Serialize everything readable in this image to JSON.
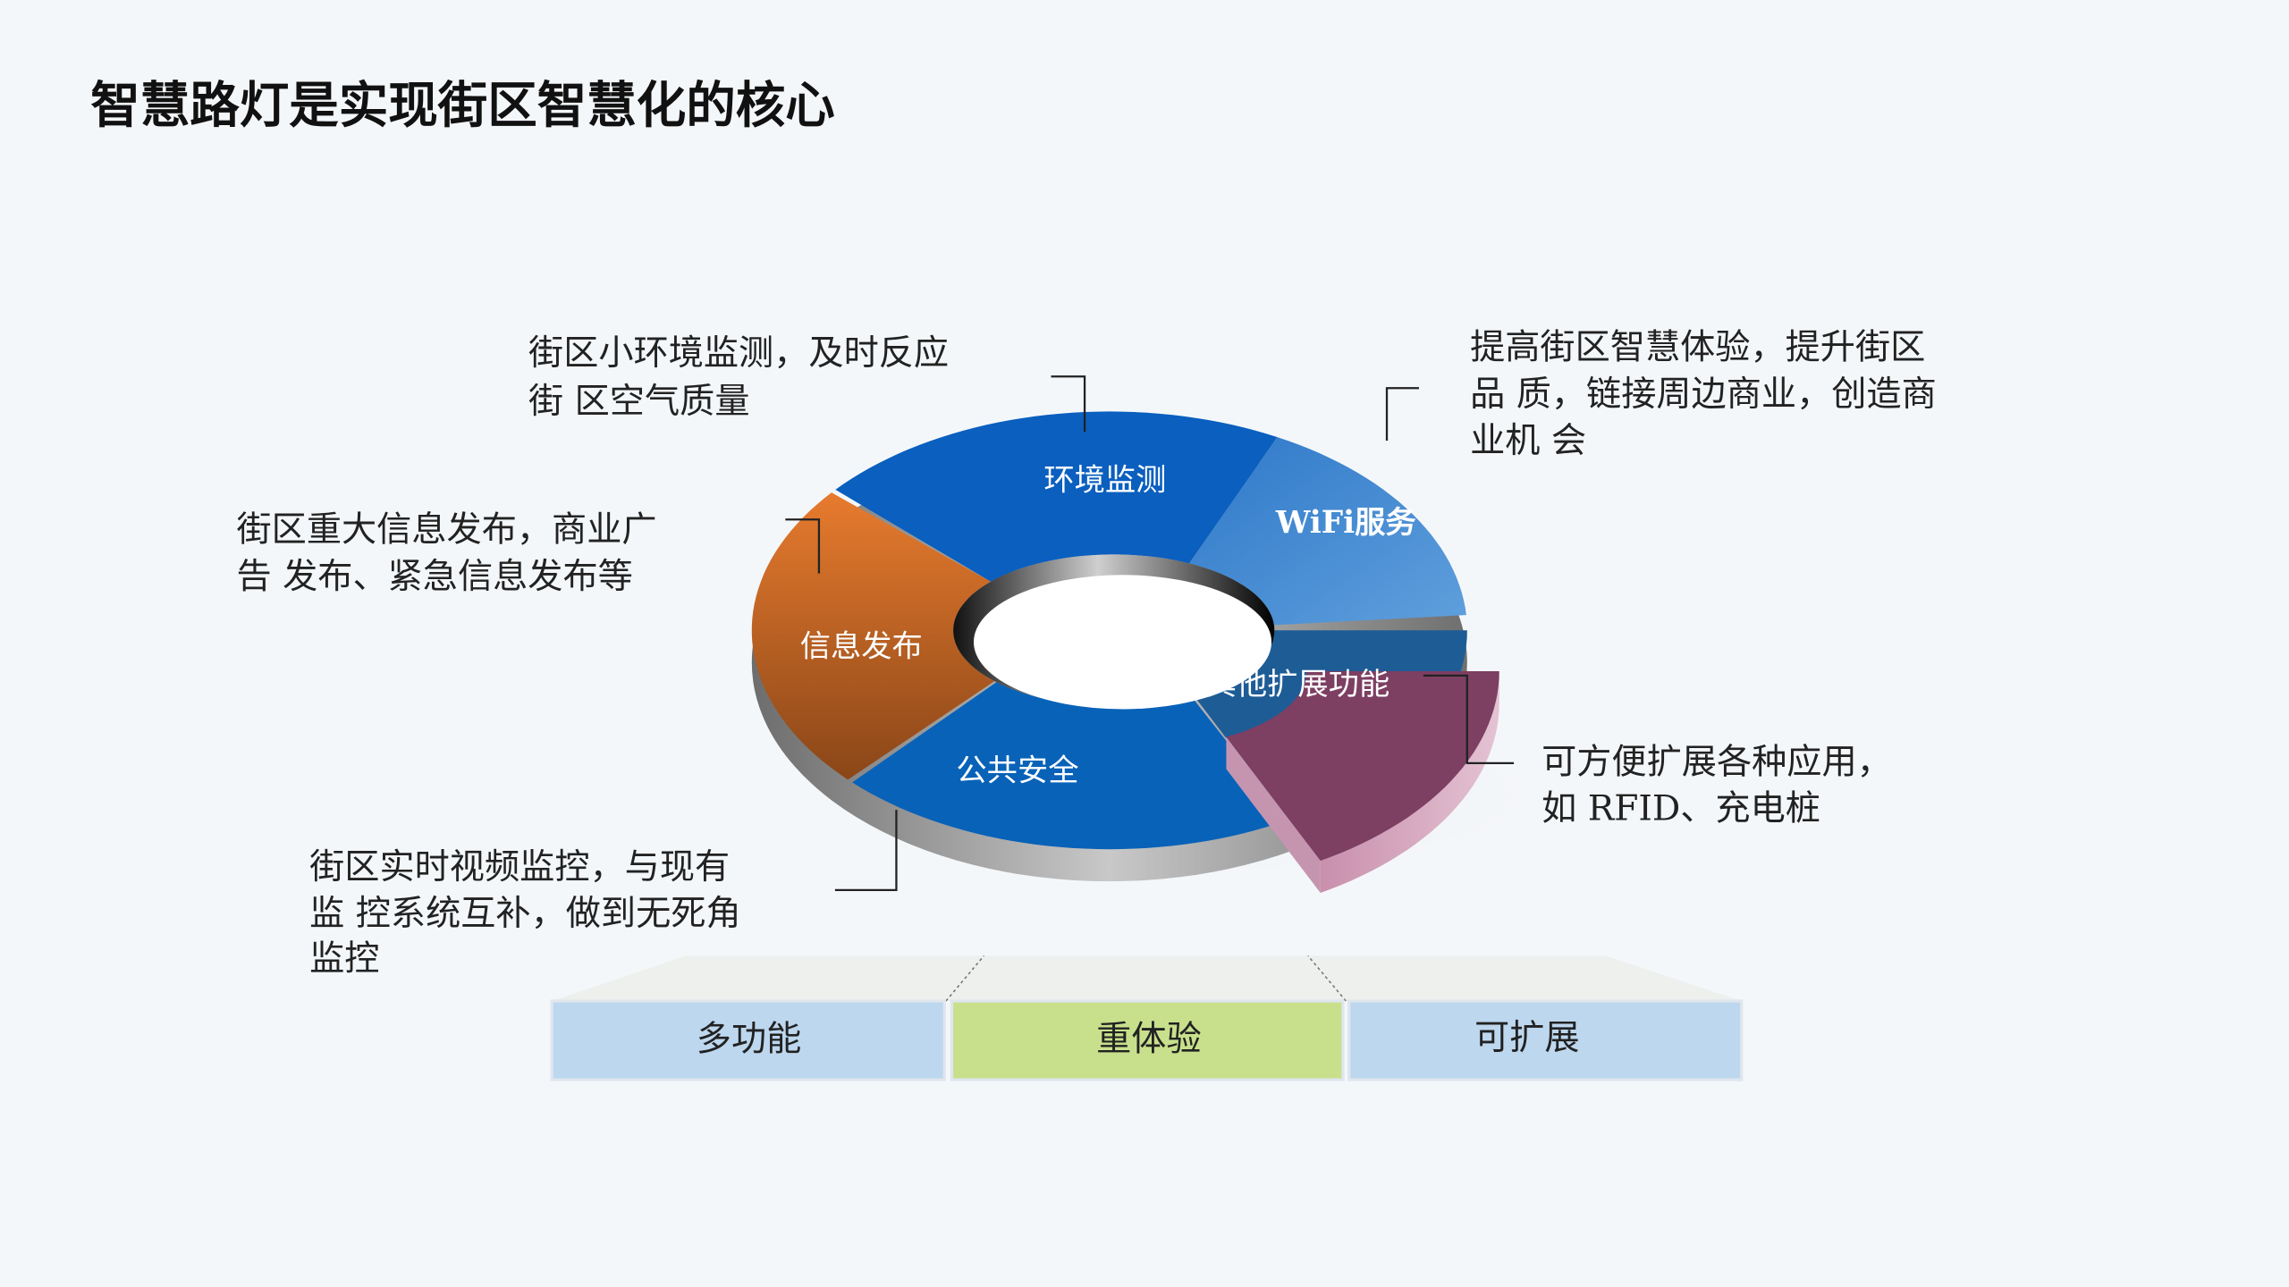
{
  "title": "智慧路灯是实现街区智慧化的核心",
  "segments": [
    {
      "label": "环境监测",
      "color": "#0a5fbf"
    },
    {
      "label": "WiFi服务",
      "color": "#3d8ad6"
    },
    {
      "label": "其他扩展功能",
      "color": "#7d3f62"
    },
    {
      "label": "公共安全",
      "color": "#0862b8"
    },
    {
      "label": "信息发布",
      "color": "#d8702a"
    }
  ],
  "annotations": {
    "env": [
      "街区小环境监测，及时反应",
      "街 区空气质量"
    ],
    "wifi": [
      "提高街区智慧体验，提升街区",
      "品 质，链接周边商业，创造商",
      "业机 会"
    ],
    "info": [
      "街区重大信息发布，商业广",
      "告 发布、紧急信息发布等"
    ],
    "ext": [
      "可方便扩展各种应用，",
      "如 RFID、充电桩"
    ],
    "safety": [
      "街区实时视频监控，与现有",
      "监 控系统互补，做到无死角",
      "监控"
    ]
  },
  "features": [
    {
      "label": "多功能",
      "color": "#bdd7ee"
    },
    {
      "label": "重体验",
      "color": "#c8e08c"
    },
    {
      "label": "可扩展",
      "color": "#bdd7ee"
    }
  ]
}
